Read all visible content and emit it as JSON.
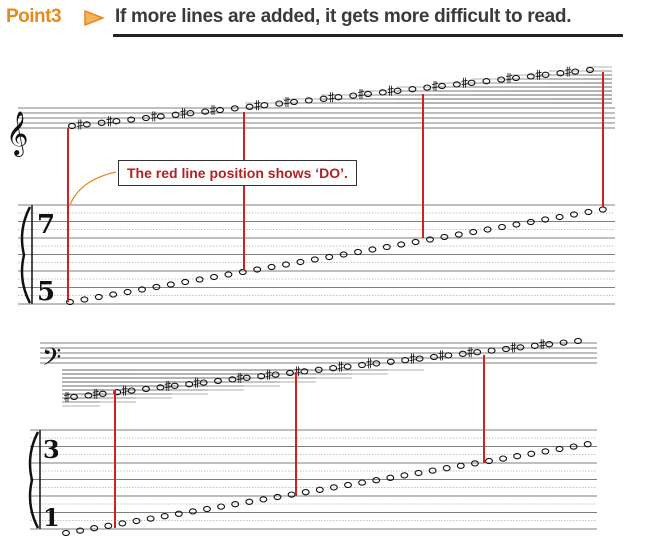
{
  "header": {
    "point_label": "Point3",
    "headline": "If more lines are added, it gets more difficult to read."
  },
  "callout": "The red line position shows ‘DO’.",
  "top_system": {
    "tab_numbers": [
      "7",
      "5"
    ]
  },
  "bottom_system": {
    "tab_numbers": [
      "3",
      "1"
    ]
  },
  "colors": {
    "accent_orange": "#e8891c",
    "red_line": "#d02020",
    "callout_text": "#b32222"
  },
  "icons": [
    "arrow-right-icon",
    "treble-clef-icon",
    "bass-clef-icon",
    "brace-icon"
  ]
}
